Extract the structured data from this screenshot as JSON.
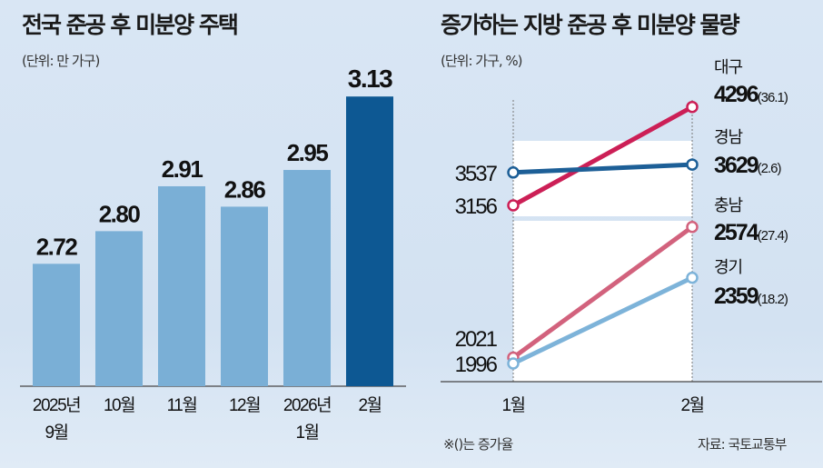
{
  "chart_data": [
    {
      "type": "bar",
      "title": "전국 준공 후 미분양 주택",
      "unit": "(단위: 만 가구)",
      "categories": [
        [
          "2025년",
          "9월"
        ],
        [
          "10월"
        ],
        [
          "11월"
        ],
        [
          "12월"
        ],
        [
          "2026년",
          "1월"
        ],
        [
          "2월"
        ]
      ],
      "values": [
        2.72,
        2.8,
        2.91,
        2.86,
        2.95,
        3.13
      ],
      "value_labels": [
        "2.72",
        "2.80",
        "2.91",
        "2.86",
        "2.95",
        "3.13"
      ],
      "highlight_index": 5,
      "ylim": [
        2.42,
        3.2
      ],
      "colors": {
        "bar": "#7aafd6",
        "highlight": "#0d5893"
      }
    },
    {
      "type": "line",
      "title": "증가하는 지방 준공 후 미분양 물량",
      "unit": "(단위: 가구, %)",
      "categories": [
        "1월",
        "2월"
      ],
      "series": [
        {
          "name": "대구",
          "values": [
            3156,
            4296
          ],
          "start_label": "3156",
          "end_label": "4296",
          "rate": "(36.1)",
          "color": "#cc1f56"
        },
        {
          "name": "경남",
          "values": [
            3537,
            3629
          ],
          "start_label": "3537",
          "end_label": "3629",
          "rate": "(2.6)",
          "color": "#1d5f97"
        },
        {
          "name": "충남",
          "values": [
            2021,
            2574
          ],
          "start_label": "2021",
          "end_label": "2574",
          "rate": "(27.4)",
          "color": "#d2627d"
        },
        {
          "name": "경기",
          "values": [
            1996,
            2359
          ],
          "start_label": "1996",
          "end_label": "2359",
          "rate": "(18.2)",
          "color": "#7db3d9"
        }
      ],
      "footnote": "※()는 증가율",
      "source": "자료: 국토교통부"
    }
  ]
}
